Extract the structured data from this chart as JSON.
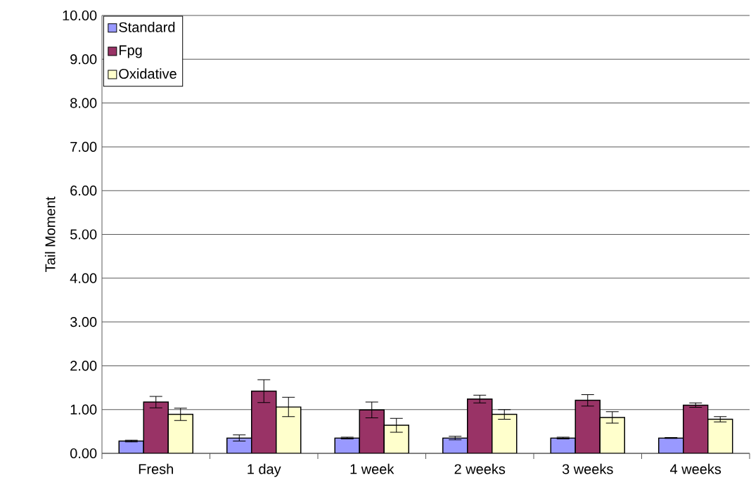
{
  "chart_data": {
    "type": "bar",
    "ylabel": "Tail Moment",
    "categories": [
      "Fresh",
      "1 day",
      "1 week",
      "2 weeks",
      "3 weeks",
      "4 weeks"
    ],
    "series": [
      {
        "name": "Standard",
        "color": "#9999ff",
        "values": [
          0.28,
          0.35,
          0.35,
          0.35,
          0.35,
          0.35
        ],
        "errors": [
          0.02,
          0.07,
          0.02,
          0.04,
          0.02,
          0.01
        ]
      },
      {
        "name": "Fpg",
        "color": "#993366",
        "values": [
          1.17,
          1.42,
          0.99,
          1.24,
          1.21,
          1.1
        ],
        "errors": [
          0.13,
          0.26,
          0.18,
          0.09,
          0.13,
          0.05
        ]
      },
      {
        "name": "Oxidative",
        "color": "#ffffcc",
        "values": [
          0.89,
          1.06,
          0.64,
          0.89,
          0.82,
          0.78
        ],
        "errors": [
          0.14,
          0.22,
          0.16,
          0.11,
          0.13,
          0.06
        ]
      }
    ],
    "ylim": [
      0,
      10
    ],
    "yticks": [
      {
        "value": 0,
        "label": "0.00"
      },
      {
        "value": 1,
        "label": "1.00"
      },
      {
        "value": 2,
        "label": "2.00"
      },
      {
        "value": 3,
        "label": "3.00"
      },
      {
        "value": 4,
        "label": "4.00"
      },
      {
        "value": 5,
        "label": "5.00"
      },
      {
        "value": 6,
        "label": "6.00"
      },
      {
        "value": 7,
        "label": "7.00"
      },
      {
        "value": 8,
        "label": "8.00"
      },
      {
        "value": 9,
        "label": "9.00"
      },
      {
        "value": 10,
        "label": "10.00"
      }
    ],
    "grid": "y",
    "legend": "top left"
  }
}
